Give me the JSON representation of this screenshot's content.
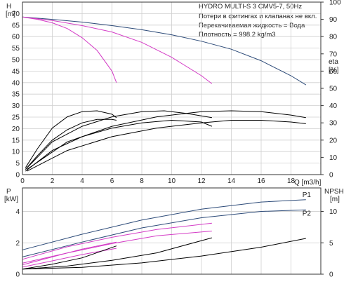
{
  "info": {
    "title": "HYDRO MULTI-S 3 CMV5-7, 50Hz",
    "lines": [
      "Потери в фитингах и клапанах не вкл.",
      "Перекачиваемая жидкость = Вода",
      "Плотность = 998.2 kg/m3"
    ]
  },
  "colors": {
    "blue": "#2c4a78",
    "magenta": "#d43cc6",
    "black": "#000000",
    "grid": "#cfcfcf"
  },
  "chart_data": [
    {
      "type": "line",
      "xlabel": "Q [m3/h]",
      "ylabel": "H [m]",
      "y2label": "eta [%]",
      "xlim": [
        0,
        20
      ],
      "ylim": [
        0,
        75
      ],
      "y2lim": [
        0,
        100
      ],
      "x_ticks": [
        0,
        2,
        4,
        6,
        8,
        10,
        12,
        14,
        16,
        18
      ],
      "y_ticks": [
        0,
        5,
        10,
        15,
        20,
        25,
        30,
        35,
        40,
        45,
        50,
        55,
        60,
        65,
        70
      ],
      "y2_ticks": [
        0,
        10,
        20,
        30,
        40,
        50,
        60,
        70,
        80,
        90,
        100
      ],
      "series": [
        {
          "axis": "left",
          "color": "blue",
          "x": [
            0,
            2,
            4,
            6,
            8,
            10,
            12,
            14,
            16,
            18,
            19
          ],
          "y": [
            68.5,
            67.5,
            66.3,
            64.8,
            63,
            60.8,
            58,
            54.5,
            49.5,
            43,
            39
          ]
        },
        {
          "axis": "left",
          "color": "magenta",
          "x": [
            0,
            2,
            4,
            6,
            8,
            10,
            12,
            12.7
          ],
          "y": [
            68.5,
            67,
            64.8,
            62,
            57.5,
            51,
            43,
            39.5
          ]
        },
        {
          "axis": "left",
          "color": "magenta",
          "x": [
            0,
            1,
            2,
            3,
            4,
            5,
            6,
            6.3
          ],
          "y": [
            68.5,
            67.5,
            66,
            63.5,
            59.5,
            54,
            45,
            40
          ]
        },
        {
          "axis": "right",
          "color": "black",
          "x": [
            0.2,
            1,
            2,
            3,
            4,
            5,
            6,
            6.3
          ],
          "y": [
            4,
            15,
            27,
            33.5,
            36.5,
            37,
            35,
            33
          ]
        },
        {
          "axis": "right",
          "color": "black",
          "x": [
            0.2,
            1,
            2,
            3,
            4,
            5,
            6,
            6.3
          ],
          "y": [
            3,
            11,
            20,
            26,
            30,
            32,
            32,
            31.5
          ]
        },
        {
          "axis": "right",
          "color": "black",
          "x": [
            0.2,
            2,
            4,
            6,
            8,
            9.5,
            11,
            12.7
          ],
          "y": [
            3,
            19,
            28,
            33.5,
            36.5,
            37,
            35.5,
            33
          ]
        },
        {
          "axis": "right",
          "color": "black",
          "x": [
            0.2,
            2,
            4,
            6,
            8,
            10,
            12,
            12.7
          ],
          "y": [
            2,
            14,
            22,
            27,
            30,
            31.5,
            30.5,
            28
          ]
        },
        {
          "axis": "right",
          "color": "black",
          "x": [
            0.3,
            3,
            6,
            9,
            12,
            14,
            16,
            18,
            19
          ],
          "y": [
            3,
            19,
            28,
            33.5,
            36.5,
            37,
            36.5,
            34.5,
            33
          ]
        },
        {
          "axis": "right",
          "color": "black",
          "x": [
            0.3,
            3,
            6,
            9,
            12,
            14,
            16,
            18,
            19
          ],
          "y": [
            2,
            14,
            22,
            27,
            30,
            31.5,
            31.5,
            30.5,
            29.5
          ]
        }
      ]
    },
    {
      "type": "line",
      "xlabel": "",
      "ylabel": "P [kW]",
      "y2label": "NPSH [m]",
      "xlim": [
        0,
        20
      ],
      "ylim": [
        0,
        5.5
      ],
      "y2lim": [
        0,
        13.75
      ],
      "y_ticks": [
        0,
        2,
        4
      ],
      "y2_ticks": [
        0,
        5,
        10
      ],
      "series": [
        {
          "name": "P1",
          "axis": "left",
          "color": "blue",
          "x": [
            0,
            4,
            8,
            12,
            16,
            19
          ],
          "y": [
            1.55,
            2.55,
            3.45,
            4.15,
            4.6,
            4.75
          ]
        },
        {
          "name": "P2",
          "axis": "left",
          "color": "blue",
          "x": [
            0,
            4,
            8,
            12,
            16,
            19
          ],
          "y": [
            1.1,
            2.05,
            2.95,
            3.6,
            4.0,
            4.1
          ]
        },
        {
          "axis": "left",
          "color": "magenta",
          "x": [
            0,
            3,
            6,
            9,
            12.7
          ],
          "y": [
            0.95,
            1.75,
            2.35,
            2.85,
            3.25
          ]
        },
        {
          "axis": "left",
          "color": "magenta",
          "x": [
            0,
            3,
            6,
            9,
            12.7
          ],
          "y": [
            0.7,
            1.35,
            1.95,
            2.45,
            2.75
          ]
        },
        {
          "axis": "left",
          "color": "magenta",
          "x": [
            0,
            2,
            4,
            6.3
          ],
          "y": [
            0.6,
            1.1,
            1.6,
            2.05
          ]
        },
        {
          "axis": "left",
          "color": "magenta",
          "x": [
            0,
            2,
            4,
            6.3
          ],
          "y": [
            0.45,
            0.85,
            1.25,
            1.65
          ]
        },
        {
          "axis": "right",
          "color": "black",
          "x": [
            0,
            2,
            4,
            6.3
          ],
          "y": [
            0.8,
            1.6,
            2.6,
            4.5
          ]
        },
        {
          "axis": "right",
          "color": "black",
          "x": [
            0,
            3,
            6,
            9,
            12.7
          ],
          "y": [
            0.8,
            1.3,
            2.2,
            3.4,
            5.8
          ]
        },
        {
          "axis": "right",
          "color": "black",
          "x": [
            0,
            4,
            8,
            12,
            16,
            19
          ],
          "y": [
            0.8,
            1.1,
            1.8,
            2.9,
            4.3,
            5.7
          ]
        }
      ]
    }
  ]
}
